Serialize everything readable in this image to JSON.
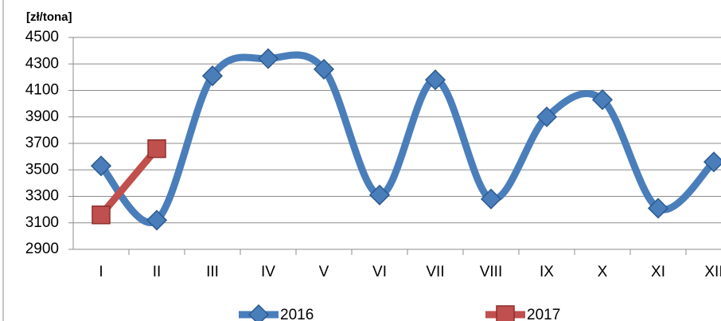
{
  "chart_data": {
    "type": "line",
    "y_label": "[zł/tona]",
    "categories": [
      "I",
      "II",
      "III",
      "IV",
      "V",
      "VI",
      "VII",
      "VIII",
      "IX",
      "X",
      "XI",
      "XII"
    ],
    "series": [
      {
        "name": "2016",
        "color": "#4a7ebb",
        "marker": "diamond",
        "smooth": true,
        "values": [
          3530,
          3120,
          4210,
          4340,
          4260,
          3310,
          4180,
          3280,
          3900,
          4030,
          3210,
          3560
        ]
      },
      {
        "name": "2017",
        "color": "#c0504d",
        "marker": "square",
        "smooth": false,
        "values": [
          3160,
          3660,
          null,
          null,
          null,
          null,
          null,
          null,
          null,
          null,
          null,
          null
        ]
      }
    ],
    "ylim": [
      2900,
      4500
    ],
    "yticks": [
      2900,
      3100,
      3300,
      3500,
      3700,
      3900,
      4100,
      4300,
      4500
    ],
    "grid": true,
    "legend": "bottom"
  }
}
